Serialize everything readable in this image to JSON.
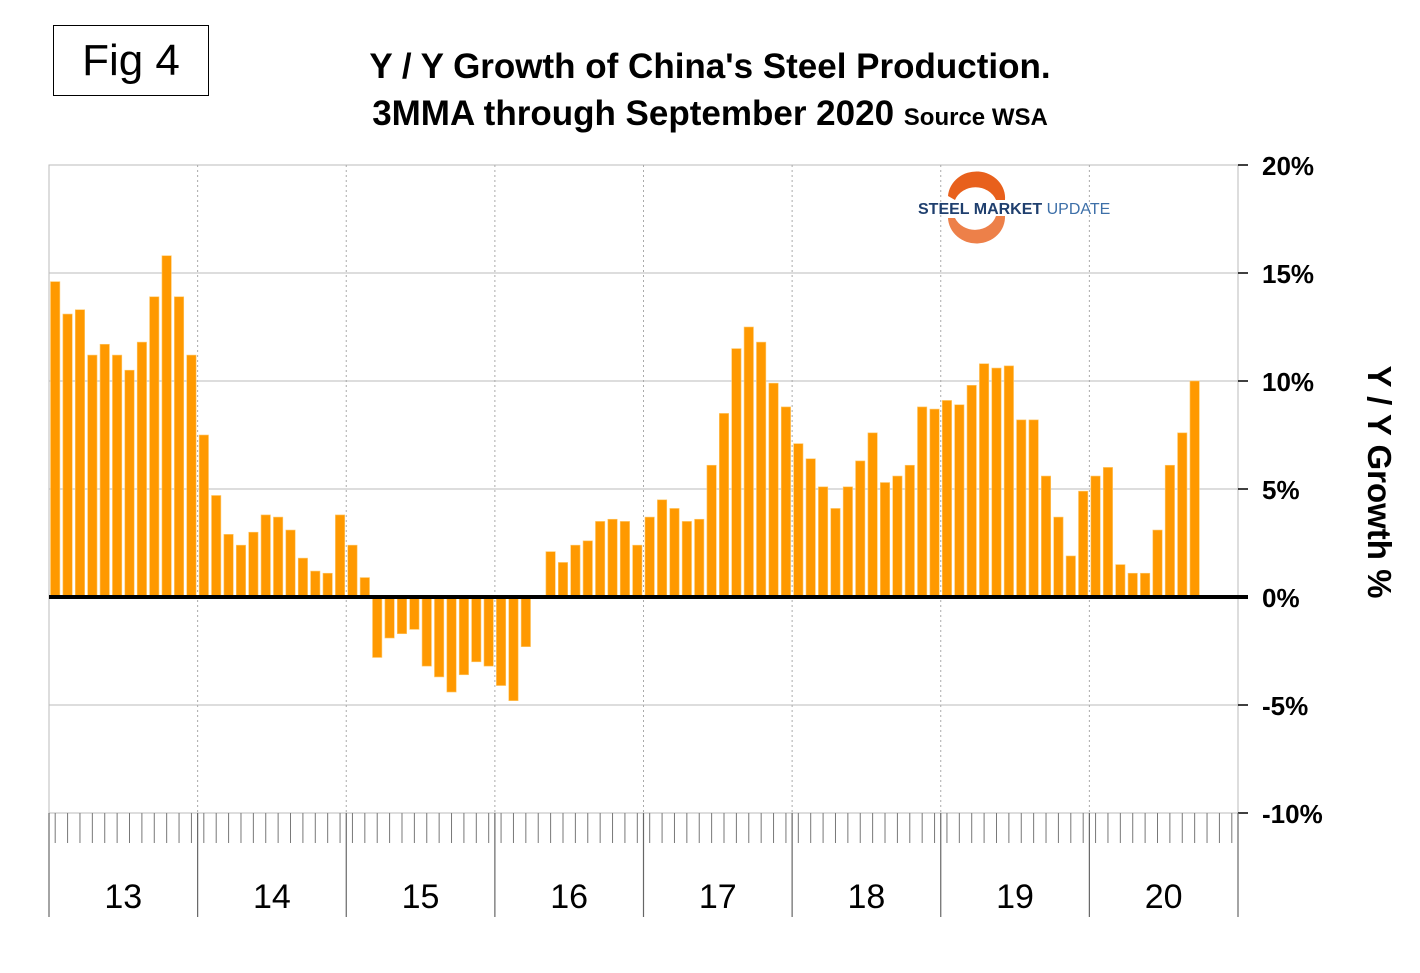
{
  "fig_label": "Fig 4",
  "logo": {
    "text_bold": "STEEL",
    "text_mid": "MARKET",
    "text_light": "UPDATE"
  },
  "chart_data": {
    "type": "bar",
    "title": "Y / Y Growth of China's Steel Production.",
    "subtitle": "3MMA through September 2020",
    "source": "Source WSA",
    "ylabel": "Y / Y Growth %",
    "xlabel": "",
    "ylim": [
      -10,
      20
    ],
    "yticks": [
      20,
      15,
      10,
      5,
      0,
      -5,
      -10
    ],
    "ytick_labels": [
      "20%",
      "15%",
      "10%",
      "5%",
      "0%",
      "-5%",
      "-10%"
    ],
    "year_labels": [
      "13",
      "14",
      "15",
      "16",
      "17",
      "18",
      "19",
      "20"
    ],
    "grid": true,
    "bar_color": "#FF9900",
    "start": "2013-01",
    "values": [
      14.6,
      13.1,
      13.3,
      11.2,
      11.7,
      11.2,
      10.5,
      11.8,
      13.9,
      15.8,
      13.9,
      11.2,
      7.5,
      4.7,
      2.9,
      2.4,
      3.0,
      3.8,
      3.7,
      3.1,
      1.8,
      1.2,
      1.1,
      3.8,
      2.4,
      0.9,
      -2.8,
      -1.9,
      -1.7,
      -1.5,
      -3.2,
      -3.7,
      -4.4,
      -3.6,
      -3.0,
      -3.2,
      -4.1,
      -4.8,
      -2.3,
      null,
      2.1,
      1.6,
      2.4,
      2.6,
      3.5,
      3.6,
      3.5,
      2.4,
      3.7,
      4.5,
      4.1,
      3.5,
      3.6,
      6.1,
      8.5,
      11.5,
      12.5,
      11.8,
      9.9,
      8.8,
      7.1,
      6.4,
      5.1,
      4.1,
      5.1,
      6.3,
      7.6,
      5.3,
      5.6,
      6.1,
      8.8,
      8.7,
      9.1,
      8.9,
      9.8,
      10.8,
      10.6,
      10.7,
      8.2,
      8.2,
      5.6,
      3.7,
      1.9,
      4.9,
      5.6,
      6.0,
      1.5,
      1.1,
      1.1,
      3.1,
      6.1,
      7.6,
      10.0
    ]
  }
}
